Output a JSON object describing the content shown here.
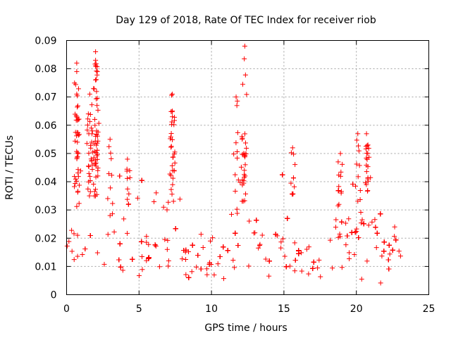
{
  "chart_data": {
    "type": "scatter",
    "title": "Day 129 of 2018, Rate Of TEC Index for receiver riob",
    "xlabel": "GPS time / hours",
    "ylabel": "ROTI / TECUs",
    "xlim": [
      0,
      25
    ],
    "ylim": [
      0,
      0.09
    ],
    "xticks": [
      "0",
      "5",
      "10",
      "15",
      "20",
      "25"
    ],
    "yticks": [
      "0",
      "0.01",
      "0.02",
      "0.03",
      "0.04",
      "0.05",
      "0.06",
      "0.07",
      "0.08",
      "0.09"
    ],
    "grid": true,
    "marker": "+",
    "color": "#ff0000",
    "data_extent_hours": [
      0,
      23.2
    ],
    "typical_band": [
      0.005,
      0.03
    ],
    "series": [
      {
        "name": "ROTI",
        "notable_points": [
          {
            "x": 0.7,
            "y": 0.082
          },
          {
            "x": 0.7,
            "y": 0.079
          },
          {
            "x": 0.7,
            "y": 0.071
          },
          {
            "x": 0.8,
            "y": 0.062
          },
          {
            "x": 1.6,
            "y": 0.071
          },
          {
            "x": 1.5,
            "y": 0.064
          },
          {
            "x": 1.7,
            "y": 0.059
          },
          {
            "x": 2.0,
            "y": 0.086
          },
          {
            "x": 2.0,
            "y": 0.083
          },
          {
            "x": 2.0,
            "y": 0.081
          },
          {
            "x": 2.0,
            "y": 0.076
          },
          {
            "x": 2.1,
            "y": 0.067
          },
          {
            "x": 3.0,
            "y": 0.055
          },
          {
            "x": 4.2,
            "y": 0.048
          },
          {
            "x": 7.3,
            "y": 0.071
          },
          {
            "x": 7.3,
            "y": 0.065
          },
          {
            "x": 7.3,
            "y": 0.063
          },
          {
            "x": 11.7,
            "y": 0.07
          },
          {
            "x": 12.3,
            "y": 0.088
          },
          {
            "x": 12.1,
            "y": 0.056
          },
          {
            "x": 12.2,
            "y": 0.05
          },
          {
            "x": 15.6,
            "y": 0.052
          },
          {
            "x": 18.9,
            "y": 0.05
          },
          {
            "x": 20.1,
            "y": 0.057
          },
          {
            "x": 20.7,
            "y": 0.057
          },
          {
            "x": 20.8,
            "y": 0.053
          }
        ],
        "profile": [
          {
            "x": 0.0,
            "lo": 0.007,
            "mid": 0.015,
            "hi": 0.027
          },
          {
            "x": 1.0,
            "lo": 0.008,
            "mid": 0.018,
            "hi": 0.033
          },
          {
            "x": 2.0,
            "lo": 0.008,
            "mid": 0.017,
            "hi": 0.032
          },
          {
            "x": 3.0,
            "lo": 0.007,
            "mid": 0.015,
            "hi": 0.028
          },
          {
            "x": 4.0,
            "lo": 0.006,
            "mid": 0.014,
            "hi": 0.03
          },
          {
            "x": 5.0,
            "lo": 0.007,
            "mid": 0.014,
            "hi": 0.028
          },
          {
            "x": 6.0,
            "lo": 0.007,
            "mid": 0.016,
            "hi": 0.033
          },
          {
            "x": 7.0,
            "lo": 0.008,
            "mid": 0.018,
            "hi": 0.035
          },
          {
            "x": 8.0,
            "lo": 0.006,
            "mid": 0.011,
            "hi": 0.02
          },
          {
            "x": 9.0,
            "lo": 0.006,
            "mid": 0.011,
            "hi": 0.02
          },
          {
            "x": 10.0,
            "lo": 0.007,
            "mid": 0.013,
            "hi": 0.024
          },
          {
            "x": 11.0,
            "lo": 0.008,
            "mid": 0.015,
            "hi": 0.027
          },
          {
            "x": 12.0,
            "lo": 0.009,
            "mid": 0.018,
            "hi": 0.032
          },
          {
            "x": 13.0,
            "lo": 0.009,
            "mid": 0.018,
            "hi": 0.032
          },
          {
            "x": 14.0,
            "lo": 0.008,
            "mid": 0.017,
            "hi": 0.031
          },
          {
            "x": 15.0,
            "lo": 0.008,
            "mid": 0.016,
            "hi": 0.03
          },
          {
            "x": 16.0,
            "lo": 0.007,
            "mid": 0.014,
            "hi": 0.026
          },
          {
            "x": 17.0,
            "lo": 0.005,
            "mid": 0.01,
            "hi": 0.018
          },
          {
            "x": 18.0,
            "lo": 0.007,
            "mid": 0.013,
            "hi": 0.024
          },
          {
            "x": 19.0,
            "lo": 0.008,
            "mid": 0.016,
            "hi": 0.029
          },
          {
            "x": 20.0,
            "lo": 0.01,
            "mid": 0.021,
            "hi": 0.033
          },
          {
            "x": 21.0,
            "lo": 0.01,
            "mid": 0.022,
            "hi": 0.034
          },
          {
            "x": 22.0,
            "lo": 0.008,
            "mid": 0.015,
            "hi": 0.026
          },
          {
            "x": 23.2,
            "lo": 0.008,
            "mid": 0.014,
            "hi": 0.026
          }
        ]
      }
    ]
  }
}
